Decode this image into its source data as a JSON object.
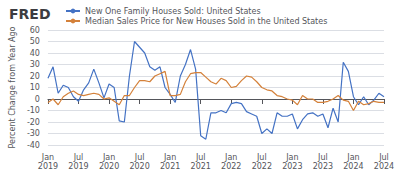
{
  "chart_data": {
    "type": "line",
    "title": "FRED",
    "ylabel": "Percent Change from Year Ago",
    "categories": [
      "Jan\n2019",
      null,
      null,
      null,
      null,
      null,
      "Jul\n2019",
      null,
      null,
      null,
      null,
      null,
      "Jan\n2020",
      null,
      null,
      null,
      null,
      null,
      "Jul\n2020",
      null,
      null,
      null,
      null,
      null,
      "Jan\n2021",
      null,
      null,
      null,
      null,
      null,
      "Jul\n2021",
      null,
      null,
      null,
      null,
      null,
      "Jan\n2022",
      null,
      null,
      null,
      null,
      null,
      "Jul\n2022",
      null,
      null,
      null,
      null,
      null,
      "Jan\n2023",
      null,
      null,
      null,
      null,
      null,
      "Jul\n2023",
      null,
      null,
      null,
      null,
      null,
      "Jan\n2024",
      null,
      null,
      null,
      null,
      null,
      "Jul\n2024"
    ],
    "series": [
      {
        "name": "New One Family Houses Sold: United States",
        "color": "#4472c4",
        "values": [
          18,
          28,
          5,
          12,
          10,
          2,
          -2,
          8,
          14,
          26,
          14,
          1,
          13,
          10,
          -19,
          -20,
          20,
          50,
          45,
          40,
          28,
          25,
          28,
          10,
          4,
          -3,
          20,
          30,
          43,
          26,
          -32,
          -35,
          -12,
          -12,
          -10,
          -12,
          -4,
          -3,
          -4,
          -11,
          -13,
          -15,
          -30,
          -26,
          -30,
          -12,
          -15,
          -15,
          -13,
          -26,
          -18,
          -13,
          -12,
          -15,
          -13,
          -25,
          -8,
          -20,
          32,
          24,
          2,
          -5,
          2,
          -5,
          -1,
          5,
          2
        ]
      },
      {
        "name": "Median Sales Price for New Houses Sold in the United States",
        "color": "#d4813a",
        "values": [
          -3,
          0,
          -5,
          2,
          5,
          7,
          4,
          3,
          4,
          5,
          4,
          0,
          1,
          -2,
          -5,
          3,
          3,
          10,
          16,
          16,
          15,
          20,
          22,
          24,
          3,
          3,
          4,
          15,
          22,
          23,
          23,
          19,
          15,
          13,
          18,
          16,
          10,
          11,
          16,
          20,
          19,
          15,
          10,
          8,
          7,
          3,
          2,
          0,
          -1,
          -5,
          3,
          0,
          0,
          -3,
          -3,
          -2,
          0,
          3,
          -1,
          -2,
          -10,
          -2,
          -5,
          -4,
          -2,
          -3,
          -3
        ]
      }
    ],
    "ylim": [
      -40,
      60
    ],
    "yticks": [
      -40,
      -30,
      -20,
      -10,
      0,
      10,
      20,
      30,
      40,
      50,
      60
    ],
    "grid": true,
    "legend": "top"
  }
}
